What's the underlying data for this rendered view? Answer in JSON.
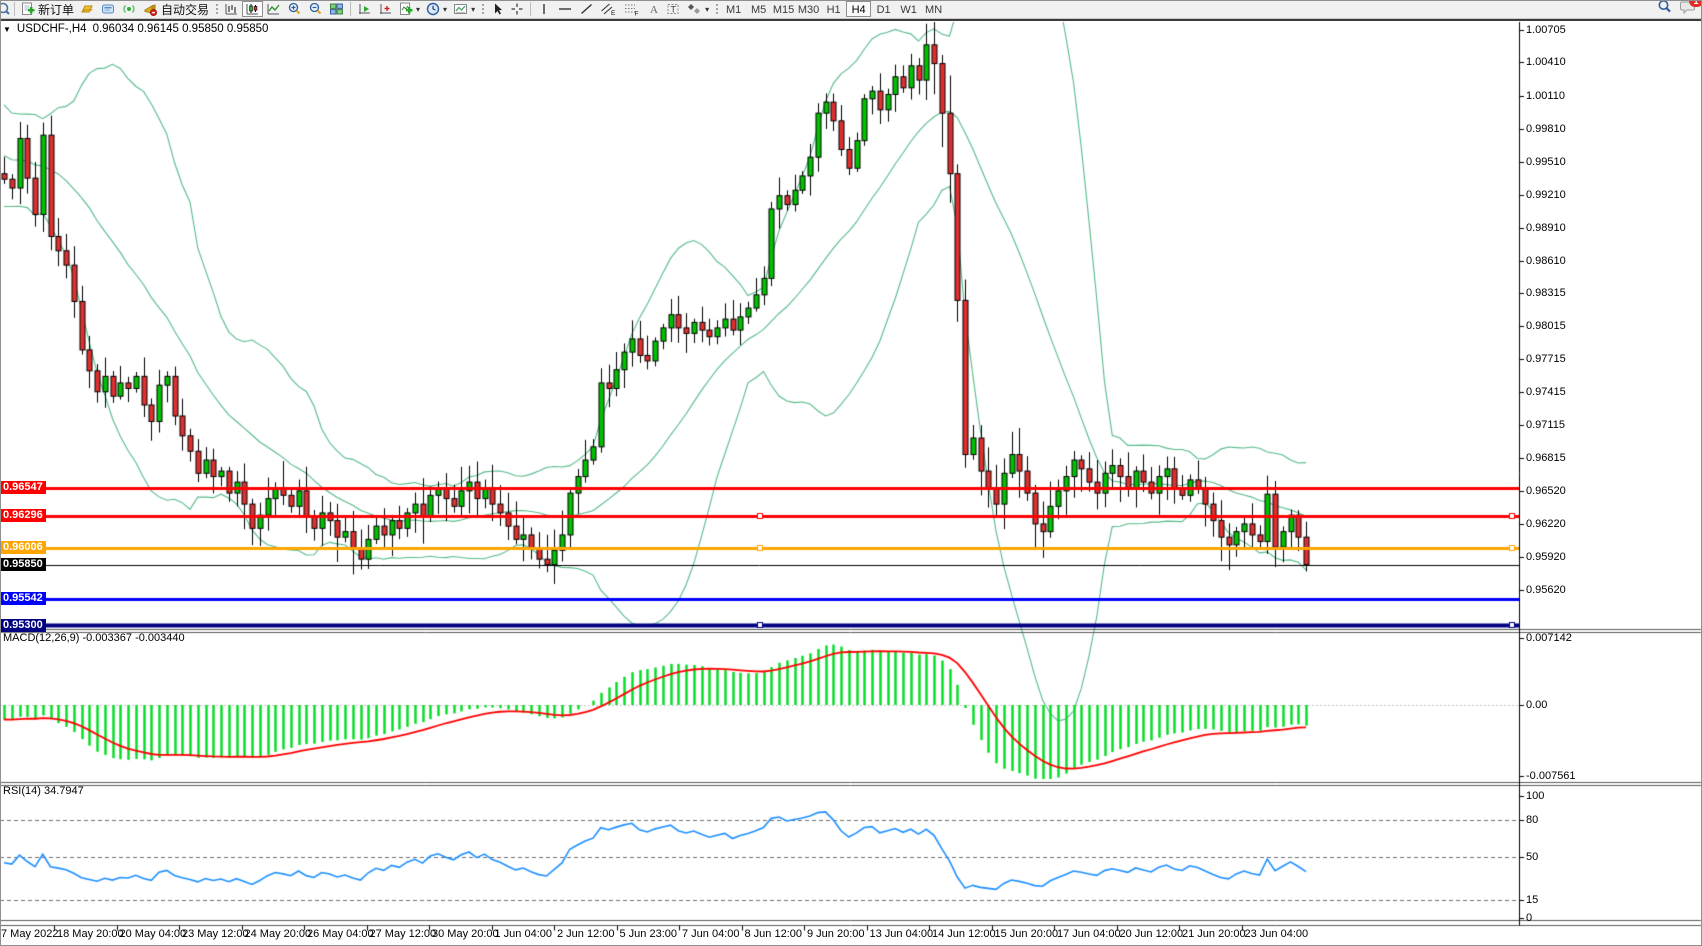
{
  "toolbar": {
    "new_order_label": "新订单",
    "autotrading_label": "自动交易",
    "timeframes": [
      {
        "label": "M1",
        "active": false
      },
      {
        "label": "M5",
        "active": false
      },
      {
        "label": "M15",
        "active": false
      },
      {
        "label": "M30",
        "active": false
      },
      {
        "label": "H1",
        "active": false
      },
      {
        "label": "H4",
        "active": true
      },
      {
        "label": "D1",
        "active": false
      },
      {
        "label": "W1",
        "active": false
      },
      {
        "label": "MN",
        "active": false
      }
    ],
    "chat_badge": "1"
  },
  "chart": {
    "collapse_triangle": "▼",
    "symbol_title": "USDCHF-,H4",
    "quote_line": "0.96034 0.96145 0.95850 0.95850",
    "ohlc": {
      "open": "0.96034",
      "high": "0.96145",
      "low": "0.95850",
      "close": "0.95850"
    },
    "price_axis_ticks": [
      "1.00705",
      "1.00410",
      "1.00110",
      "0.99810",
      "0.99510",
      "0.99210",
      "0.98910",
      "0.98610",
      "0.98315",
      "0.98015",
      "0.97715",
      "0.97415",
      "0.97115",
      "0.96815",
      "0.96520",
      "0.96220",
      "0.95920",
      "0.95620"
    ],
    "levels": [
      {
        "price": 0.96547,
        "label": "0.96547",
        "color": "#ff0000",
        "width": 3,
        "selected": false
      },
      {
        "price": 0.96296,
        "label": "0.96296",
        "color": "#ff0000",
        "width": 3,
        "selected": true
      },
      {
        "price": 0.96006,
        "label": "0.96006",
        "color": "#ffa500",
        "width": 3,
        "selected": true
      },
      {
        "price": 0.95542,
        "label": "0.95542",
        "color": "#0000ff",
        "width": 3,
        "selected": false
      },
      {
        "price": 0.953,
        "label": "0.95300",
        "color": "#000080",
        "width": 4,
        "selected": true
      }
    ],
    "current_price": {
      "price": 0.9585,
      "label": "0.95850",
      "color": "#000000"
    },
    "time_axis_labels": [
      "7 May 2022",
      "18 May 20:00",
      "20 May 04:00",
      "23 May 12:00",
      "24 May 20:00",
      "26 May 04:00",
      "27 May 12:00",
      "30 May 20:00",
      "1 Jun 04:00",
      "2 Jun 12:00",
      "5 Jun 23:00",
      "7 Jun 04:00",
      "8 Jun 12:00",
      "9 Jun 20:00",
      "13 Jun 04:00",
      "14 Jun 12:00",
      "15 Jun 20:00",
      "17 Jun 04:00",
      "20 Jun 12:00",
      "21 Jun 20:00",
      "23 Jun 04:00"
    ]
  },
  "macd": {
    "label": "MACD(12,26,9) -0.003367 -0.003440",
    "params": [
      12,
      26,
      9
    ],
    "value": -0.003367,
    "signal_value": -0.00344,
    "axis": [
      {
        "text": "0.007142",
        "v": 0.007142
      },
      {
        "text": "0.00",
        "v": 0
      },
      {
        "text": "-0.007561",
        "v": -0.007561
      }
    ]
  },
  "rsi": {
    "label": "RSI(14) 34.7947",
    "period": 14,
    "value": 34.7947,
    "axis": [
      {
        "text": "100",
        "v": 100,
        "dashed": false
      },
      {
        "text": "80",
        "v": 80,
        "dashed": true
      },
      {
        "text": "50",
        "v": 50,
        "dashed": true
      },
      {
        "text": "15",
        "v": 15,
        "dashed": true
      },
      {
        "text": "0",
        "v": 0,
        "dashed": false
      }
    ]
  },
  "colors": {
    "bull": "#00c300",
    "bear": "#e03030",
    "wick": "#000000",
    "bollinger": "#58bb8a",
    "macd_hist": "#00dd22",
    "macd_signal": "#ff0000",
    "rsi_line": "#1e90ff",
    "level_red": "#ff0000",
    "level_orange": "#ffa500",
    "level_blue": "#0000ff",
    "level_navy": "#000080"
  },
  "chart_data": {
    "type": "candlestick",
    "symbol": "USDCHF",
    "timeframe": "H4",
    "visible_price_range": [
      0.9526,
      1.008
    ],
    "indicators": [
      {
        "name": "Bollinger Bands",
        "period": 20,
        "deviation": 2
      },
      {
        "name": "MACD",
        "fast": 12,
        "slow": 26,
        "signal": 9,
        "current": [
          -0.003367,
          -0.00344
        ],
        "panel_range": [
          -0.007561,
          0.007142
        ]
      },
      {
        "name": "RSI",
        "period": 14,
        "current": 34.7947,
        "levels": [
          15,
          50,
          80
        ]
      }
    ],
    "first_open": 0.994,
    "closes": [
      0.9935,
      0.9927,
      0.9972,
      0.9936,
      0.9903,
      0.9975,
      0.9883,
      0.987,
      0.9857,
      0.9824,
      0.978,
      0.9761,
      0.9742,
      0.9756,
      0.9738,
      0.975,
      0.9745,
      0.9756,
      0.973,
      0.9715,
      0.9748,
      0.9756,
      0.972,
      0.9702,
      0.9688,
      0.9668,
      0.968,
      0.9665,
      0.967,
      0.965,
      0.966,
      0.964,
      0.9618,
      0.963,
      0.9645,
      0.9655,
      0.9648,
      0.9638,
      0.9652,
      0.9628,
      0.9618,
      0.9632,
      0.9625,
      0.961,
      0.9615,
      0.96,
      0.959,
      0.9608,
      0.962,
      0.9612,
      0.9625,
      0.9618,
      0.9632,
      0.964,
      0.9628,
      0.9648,
      0.9655,
      0.9645,
      0.9638,
      0.9652,
      0.966,
      0.9645,
      0.9655,
      0.964,
      0.9632,
      0.962,
      0.9608,
      0.9612,
      0.96,
      0.959,
      0.9585,
      0.9598,
      0.9612,
      0.965,
      0.9665,
      0.968,
      0.9692,
      0.975,
      0.9745,
      0.9762,
      0.9778,
      0.979,
      0.9775,
      0.977,
      0.9788,
      0.98,
      0.9812,
      0.98,
      0.9795,
      0.9805,
      0.9798,
      0.9792,
      0.98,
      0.9808,
      0.9798,
      0.981,
      0.9818,
      0.983,
      0.9845,
      0.9908,
      0.992,
      0.9912,
      0.9925,
      0.9938,
      0.9955,
      0.9995,
      1.0005,
      0.9988,
      0.9962,
      0.9945,
      0.997,
      1.0008,
      1.0015,
      0.9998,
      1.0012,
      1.0028,
      1.0018,
      1.0038,
      1.0025,
      1.0057,
      1.004,
      0.9995,
      0.994,
      0.9825,
      0.9685,
      0.97,
      0.967,
      0.9655,
      0.964,
      0.9668,
      0.9685,
      0.967,
      0.965,
      0.9622,
      0.9615,
      0.9638,
      0.9652,
      0.9665,
      0.968,
      0.9672,
      0.966,
      0.965,
      0.9668,
      0.9675,
      0.9665,
      0.9655,
      0.967,
      0.966,
      0.965,
      0.9665,
      0.9672,
      0.9655,
      0.9648,
      0.9662,
      0.9655,
      0.964,
      0.9625,
      0.961,
      0.9603,
      0.9615,
      0.9622,
      0.9612,
      0.9606,
      0.9649,
      0.9601,
      0.9615,
      0.963,
      0.961,
      0.9585
    ]
  }
}
